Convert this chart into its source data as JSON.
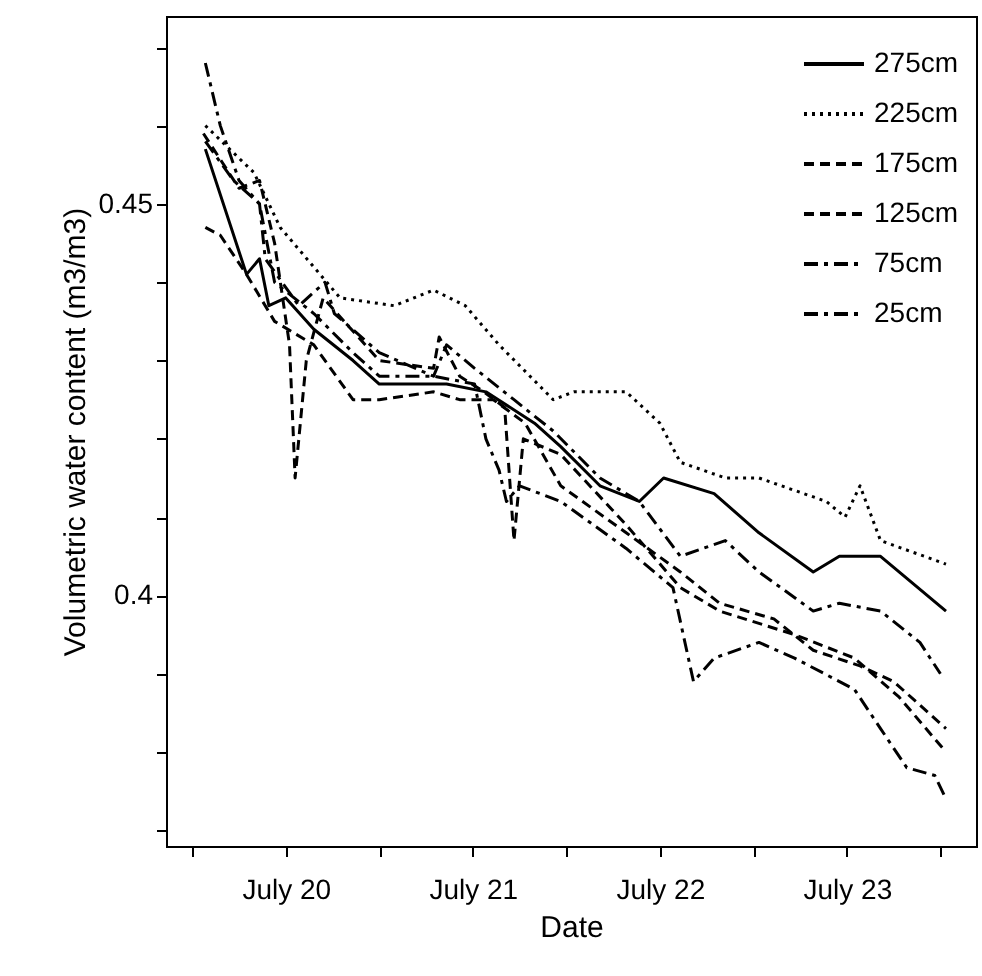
{
  "chart_data": {
    "type": "line",
    "xlabel": "Date",
    "ylabel": "Volumetric water content (m3/m3)",
    "xlim": [
      "--07-19T08:38",
      "--07-23T16:34"
    ],
    "ylim": [
      0.368,
      0.474
    ],
    "xticks": [
      {
        "value": "--07-19T12:00",
        "label": null
      },
      {
        "value": "--07-20",
        "label": "July 20"
      },
      {
        "value": "--07-20T12:00",
        "label": null
      },
      {
        "value": "--07-21",
        "label": "July 21"
      },
      {
        "value": "--07-21T12:00",
        "label": null
      },
      {
        "value": "--07-22",
        "label": "July 22"
      },
      {
        "value": "--07-22T12:00",
        "label": null
      },
      {
        "value": "--07-23",
        "label": "July 23"
      },
      {
        "value": "--07-23T12:00",
        "label": null
      }
    ],
    "yticks": [
      {
        "value": 0.37,
        "label": null
      },
      {
        "value": 0.38,
        "label": null
      },
      {
        "value": 0.39,
        "label": null
      },
      0.4,
      {
        "value": 0.41,
        "label": null
      },
      {
        "value": 0.42,
        "label": null
      },
      {
        "value": 0.43,
        "label": null
      },
      {
        "value": 0.44,
        "label": null
      },
      0.45,
      {
        "value": 0.46,
        "label": null
      },
      {
        "value": 0.47,
        "label": null
      }
    ],
    "grid": false,
    "legend": "top right",
    "marker": "none",
    "series": [
      {
        "name": "275cm",
        "color": "#000000",
        "line_style": "solid",
        "x": [
          "--07-19T13:41",
          "--07-19T18:58",
          "--07-19T20:38",
          "--07-19T21:50",
          "--07-20T00:00",
          "--07-20T03:36",
          "--07-20T08:38",
          "--07-20T12:00",
          "--07-20T18:58",
          "--07-20T20:38",
          "--07-21T01:41",
          "--07-21T07:55",
          "--07-21T11:17",
          "--07-21T16:19",
          "--07-21T21:22",
          "--07-22T00:29",
          "--07-22T06:58",
          "--07-22T12:43",
          "--07-22T19:41",
          "--07-22T23:02",
          "--07-23T04:19",
          "--07-23T12:43"
        ],
        "values": [
          0.457,
          0.441,
          0.443,
          0.437,
          0.438,
          0.434,
          0.43,
          0.427,
          0.427,
          0.427,
          0.426,
          0.422,
          0.419,
          0.414,
          0.412,
          0.415,
          0.413,
          0.408,
          0.403,
          0.405,
          0.405,
          0.398
        ]
      },
      {
        "name": "225cm",
        "color": "#000000",
        "line_style": "dotted",
        "x": [
          "--07-19T13:41",
          "--07-19T19:55",
          "--07-19T23:17",
          "--07-20T06:58",
          "--07-20T13:55",
          "--07-20T18:58",
          "--07-20T23:02",
          "--07-21T03:22",
          "--07-21T10:19",
          "--07-21T12:58",
          "--07-21T19:41",
          "--07-22T00:00",
          "--07-22T02:38",
          "--07-22T08:24",
          "--07-22T12:43",
          "--07-22T21:22",
          "--07-22T23:46",
          "--07-23T01:41",
          "--07-23T04:19",
          "--07-23T12:43"
        ],
        "values": [
          0.46,
          0.454,
          0.447,
          0.438,
          0.437,
          0.439,
          0.437,
          0.432,
          0.425,
          0.426,
          0.426,
          0.422,
          0.417,
          0.415,
          0.415,
          0.412,
          0.41,
          0.414,
          0.407,
          0.404
        ]
      },
      {
        "name": "175cm",
        "color": "#000000",
        "line_style": "dashed",
        "x": [
          "--07-19T13:26",
          "--07-19T18:00",
          "--07-19T20:38",
          "--07-19T22:34",
          "--07-20T00:29",
          "--07-20T01:12",
          "--07-20T02:38",
          "--07-20T04:48",
          "--07-20T12:00",
          "--07-20T18:58",
          "--07-20T19:41",
          "--07-20T22:19",
          "--07-21T01:26",
          "--07-21T04:05",
          "--07-21T05:17",
          "--07-21T06:29",
          "--07-21T11:17",
          "--07-21T19:41",
          "--07-22T02:38",
          "--07-22T07:41",
          "--07-22T17:17",
          "--07-23T00:58",
          "--07-23T06:43",
          "--07-23T12:43"
        ],
        "values": [
          0.459,
          0.452,
          0.453,
          0.445,
          0.432,
          0.415,
          0.43,
          0.438,
          0.43,
          0.429,
          0.433,
          0.428,
          0.426,
          0.424,
          0.407,
          0.42,
          0.418,
          0.409,
          0.401,
          0.398,
          0.395,
          0.392,
          0.387,
          0.38
        ]
      },
      {
        "name": "125cm",
        "color": "#000000",
        "line_style": "dashed",
        "x": [
          "--07-19T13:41",
          "--07-19T15:36",
          "--07-19T18:58",
          "--07-19T22:34",
          "--07-20T03:36",
          "--07-20T08:38",
          "--07-20T12:00",
          "--07-20T18:58",
          "--07-20T22:19",
          "--07-21T02:38",
          "--07-21T06:43",
          "--07-21T11:17",
          "--07-21T19:41",
          "--07-22T02:38",
          "--07-22T07:41",
          "--07-22T14:38",
          "--07-22T19:41",
          "--07-23T01:41",
          "--07-23T06:00",
          "--07-23T12:43"
        ],
        "values": [
          0.447,
          0.446,
          0.441,
          0.435,
          0.432,
          0.425,
          0.425,
          0.426,
          0.425,
          0.425,
          0.422,
          0.414,
          0.408,
          0.403,
          0.399,
          0.397,
          0.393,
          0.391,
          0.389,
          0.383
        ]
      },
      {
        "name": "75cm",
        "color": "#000000",
        "line_style": "dashdot",
        "x": [
          "--07-19T13:41",
          "--07-19T17:17",
          "--07-19T20:38",
          "--07-19T22:34",
          "--07-20T03:36",
          "--07-20T08:38",
          "--07-20T12:00",
          "--07-20T18:58",
          "--07-21T00:14",
          "--07-21T01:41",
          "--07-21T03:22",
          "--07-21T04:19",
          "--07-21T06:00",
          "--07-21T11:17",
          "--07-21T19:41",
          "--07-22T01:41",
          "--07-22T04:19",
          "--07-22T06:58",
          "--07-22T12:43",
          "--07-22T17:17",
          "--07-23T00:58",
          "--07-23T04:19",
          "--07-23T07:41",
          "--07-23T11:17",
          "--07-23T12:43"
        ],
        "values": [
          0.458,
          0.453,
          0.45,
          0.44,
          0.436,
          0.431,
          0.428,
          0.428,
          0.427,
          0.42,
          0.416,
          0.412,
          0.414,
          0.412,
          0.406,
          0.401,
          0.389,
          0.392,
          0.394,
          0.392,
          0.388,
          0.383,
          0.378,
          0.377,
          0.374
        ]
      },
      {
        "name": "25cm",
        "color": "#000000",
        "line_style": "dashdot",
        "x": [
          "--07-19T13:41",
          "--07-19T15:36",
          "--07-19T18:00",
          "--07-19T20:38",
          "--07-19T21:22",
          "--07-20T01:41",
          "--07-20T05:02",
          "--07-20T06:14",
          "--07-20T12:00",
          "--07-20T18:58",
          "--07-20T20:38",
          "--07-21T00:14",
          "--07-21T05:17",
          "--07-21T10:19",
          "--07-21T16:19",
          "--07-21T21:22",
          "--07-22T02:38",
          "--07-22T08:24",
          "--07-22T12:43",
          "--07-22T19:41",
          "--07-22T23:02",
          "--07-23T04:19",
          "--07-23T09:22",
          "--07-23T12:00"
        ],
        "values": [
          0.468,
          0.46,
          0.453,
          0.45,
          0.443,
          0.437,
          0.44,
          0.436,
          0.431,
          0.428,
          0.432,
          0.429,
          0.425,
          0.421,
          0.415,
          0.412,
          0.405,
          0.407,
          0.403,
          0.398,
          0.399,
          0.398,
          0.394,
          0.39
        ]
      }
    ]
  }
}
